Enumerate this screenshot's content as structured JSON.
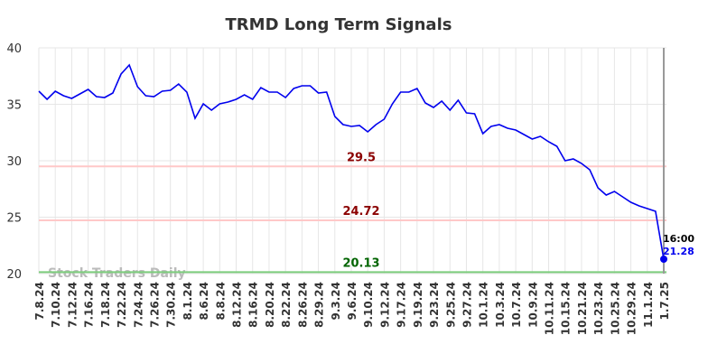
{
  "chart_data": {
    "type": "line",
    "title": "TRMD Long Term Signals",
    "categories": [
      "7.8.24",
      null,
      "7.10.24",
      null,
      "7.12.24",
      null,
      "7.16.24",
      null,
      "7.18.24",
      null,
      "7.22.24",
      null,
      "7.24.24",
      null,
      "7.26.24",
      null,
      "7.30.24",
      null,
      "8.1.24",
      null,
      "8.6.24",
      null,
      "8.8.24",
      null,
      "8.12.24",
      null,
      "8.16.24",
      null,
      "8.20.24",
      null,
      "8.22.24",
      null,
      "8.26.24",
      null,
      "8.29.24",
      null,
      "9.3.24",
      null,
      "9.6.24",
      null,
      "9.10.24",
      null,
      "9.12.24",
      null,
      "9.17.24",
      null,
      "9.19.24",
      null,
      "9.23.24",
      null,
      "9.25.24",
      null,
      "9.27.24",
      null,
      "10.1.24",
      null,
      "10.3.24",
      null,
      "10.7.24",
      null,
      "10.9.24",
      null,
      "10.11.24",
      null,
      "10.15.24",
      null,
      "10.21.24",
      null,
      "10.23.24",
      null,
      "10.25.24",
      null,
      "10.29.24",
      null,
      "11.1.24",
      null,
      "1.7.25"
    ],
    "values": [
      36.16,
      35.44,
      36.16,
      35.76,
      35.52,
      35.92,
      36.32,
      35.68,
      35.6,
      36.0,
      37.68,
      38.48,
      36.56,
      35.76,
      35.68,
      36.16,
      36.24,
      36.8,
      36.08,
      33.76,
      35.04,
      34.48,
      35.04,
      35.2,
      35.44,
      35.84,
      35.44,
      36.48,
      36.08,
      36.08,
      35.6,
      36.4,
      36.64,
      36.64,
      36.0,
      36.08,
      33.92,
      33.2,
      33.04,
      33.12,
      32.56,
      33.2,
      33.68,
      35.04,
      36.08,
      36.08,
      36.4,
      35.12,
      34.72,
      35.28,
      34.48,
      35.36,
      34.24,
      34.16,
      32.4,
      33.04,
      33.2,
      32.88,
      32.72,
      32.32,
      31.92,
      32.16,
      31.68,
      31.28,
      30.0,
      30.16,
      29.76,
      29.2,
      27.6,
      26.96,
      27.28,
      26.8,
      26.32,
      26.0,
      25.76,
      25.52,
      21.28
    ],
    "color": "#0000ee",
    "ylim": [
      20,
      40
    ],
    "yticks": [
      20,
      25,
      30,
      35,
      40
    ],
    "grid": true,
    "levels": [
      {
        "value": 29.5,
        "line_color": "#ffc8c8",
        "label_color": "#8b0000"
      },
      {
        "value": 24.72,
        "line_color": "#ffc8c8",
        "label_color": "#8b0000"
      },
      {
        "value": 20.13,
        "line_color": "#7ccd7c",
        "label_color": "#006400"
      }
    ],
    "last_time": "16:00",
    "watermark": "Stock Traders Daily"
  }
}
